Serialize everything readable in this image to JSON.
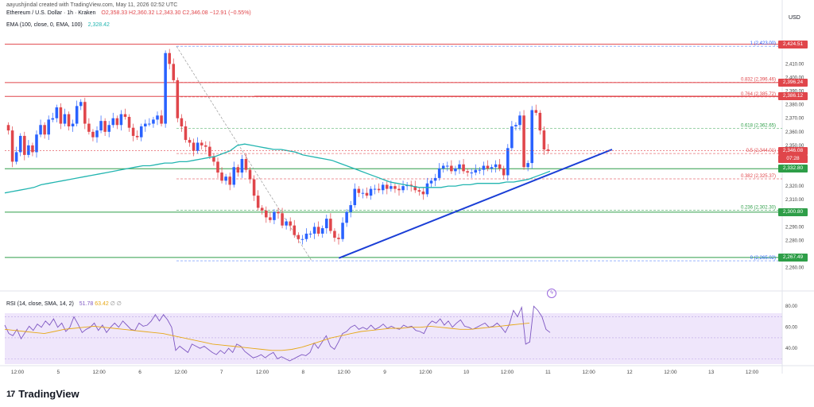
{
  "header": {
    "credit": "aayushjindal created with TradingView.com, May 11, 2026 02:52 UTC",
    "symbol": "Ethereum / U.S. Dollar · 1h · Kraken",
    "ohlc": "O2,358.33  H2,360.32  L2,343.30  C2,346.08  −12.91 (−0.55%)",
    "ema_label": "EMA (100, close, 0, EMA, 100)",
    "ema_value": "2,328.42",
    "rsi_label": "RSI (14, close, SMA, 14, 2)",
    "rsi_value": "51.78",
    "rsi_ma_value": "63.42",
    "rsi_extra": "∅ ∅",
    "currency": "USD",
    "live_icon": "lightning-icon"
  },
  "branding": {
    "name": "TradingView",
    "mark": "17"
  },
  "colors": {
    "up": "#2962ff",
    "down": "#e0464b",
    "ema": "#22b5b0",
    "rsi": "#7e57c2",
    "rsi_ma": "#e6a817",
    "support": "#2e9e48",
    "resistance": "#e0464b",
    "trendline": "#1a3ed6"
  },
  "chart_data": {
    "type": "candlestick",
    "price_axis": {
      "min": 2251,
      "max": 2436,
      "ticks": [
        "2,410.00",
        "2,400.00",
        "2,390.00",
        "2,380.00",
        "2,370.00",
        "2,360.00",
        "2,350.00",
        "2,320.00",
        "2,310.00",
        "2,290.00",
        "2,280.00",
        "2,260.00"
      ]
    },
    "rsi_axis": {
      "min": 25,
      "max": 90,
      "ticks": [
        "80.00",
        "60.00",
        "40.00"
      ]
    },
    "time_axis": {
      "labels": [
        "12:00",
        "5",
        "12:00",
        "6",
        "12:00",
        "7",
        "12:00",
        "8",
        "12:00",
        "9",
        "12:00",
        "10",
        "12:00",
        "11",
        "12:00",
        "12",
        "12:00",
        "13",
        "12:00"
      ]
    },
    "fib_levels": [
      {
        "label": "1 (2,423.00)",
        "value": 2423,
        "color": "#2962ff"
      },
      {
        "label": "0.832 (2,396.46)",
        "value": 2396.46,
        "color": "#e0464b"
      },
      {
        "label": "0.764 (2,385.72)",
        "value": 2385.72,
        "color": "#e0464b"
      },
      {
        "label": "0.618 (2,362.65)",
        "value": 2362.65,
        "color": "#2e9e48"
      },
      {
        "label": "0.5 (2,344.01)",
        "value": 2344.01,
        "color": "#e0464b"
      },
      {
        "label": "0.382 (2,325.37)",
        "value": 2325.37,
        "color": "#e0464b"
      },
      {
        "label": "0.236 (2,302.30)",
        "value": 2302.3,
        "color": "#2e9e48"
      },
      {
        "label": "0 (2,265.02)",
        "value": 2265.02,
        "color": "#2962ff"
      }
    ],
    "horizontal_lines": [
      {
        "value": 2424.5,
        "color": "#e0464b",
        "label": "2,424.51"
      },
      {
        "value": 2396.24,
        "color": "#e0464b",
        "label": "2,396.24"
      },
      {
        "value": 2386.12,
        "color": "#e0464b",
        "label": "2,386.12"
      },
      {
        "value": 2332.8,
        "color": "#2e9e48",
        "label": "2,332.80"
      },
      {
        "value": 2300.8,
        "color": "#2e9e48",
        "label": "2,300.80"
      },
      {
        "value": 2267.49,
        "color": "#2e9e48",
        "label": "2,267.49"
      }
    ],
    "current_price": {
      "value": 2346.08,
      "label": "2,346.08",
      "countdown": "07:28"
    },
    "trendline": {
      "from": [
        0.4163,
        2267
      ],
      "to": [
        0.7519,
        2347
      ]
    },
    "close_series": [
      2361,
      2338,
      2345,
      2357,
      2343,
      2350,
      2345,
      2358,
      2365,
      2358,
      2369,
      2370,
      2378,
      2366,
      2373,
      2364,
      2366,
      2379,
      2382,
      2366,
      2360,
      2356,
      2361,
      2368,
      2360,
      2365,
      2370,
      2365,
      2373,
      2371,
      2363,
      2357,
      2356,
      2364,
      2366,
      2366,
      2369,
      2372,
      2366,
      2418,
      2410,
      2398,
      2370,
      2364,
      2354,
      2352,
      2346,
      2352,
      2350,
      2349,
      2342,
      2338,
      2330,
      2324,
      2327,
      2321,
      2334,
      2330,
      2340,
      2332,
      2325,
      2313,
      2304,
      2302,
      2297,
      2295,
      2301,
      2300,
      2291,
      2294,
      2291,
      2284,
      2281,
      2281,
      2285,
      2285,
      2290,
      2285,
      2289,
      2296,
      2287,
      2282,
      2281,
      2293,
      2301,
      2306,
      2318,
      2315,
      2315,
      2313,
      2318,
      2318,
      2317,
      2321,
      2318,
      2320,
      2318,
      2317,
      2320,
      2321,
      2320,
      2317,
      2316,
      2314,
      2322,
      2324,
      2326,
      2333,
      2335,
      2335,
      2331,
      2333,
      2336,
      2331,
      2330,
      2330,
      2332,
      2332,
      2335,
      2333,
      2334,
      2336,
      2333,
      2328,
      2348,
      2364,
      2365,
      2372,
      2334,
      2337,
      2376,
      2374,
      2361,
      2347,
      2346
    ],
    "ema_series": [
      2315,
      2316,
      2317,
      2318,
      2319,
      2321,
      2322,
      2323,
      2324,
      2325,
      2326,
      2327,
      2328,
      2329,
      2330,
      2331,
      2332,
      2333,
      2334,
      2335,
      2335,
      2336,
      2337,
      2337,
      2338,
      2338,
      2339,
      2340,
      2341,
      2342,
      2344,
      2346,
      2350,
      2351,
      2350,
      2349,
      2348,
      2347,
      2347,
      2346,
      2345,
      2343,
      2342,
      2341,
      2340,
      2339,
      2337,
      2335,
      2333,
      2331,
      2329,
      2327,
      2325,
      2323,
      2322,
      2321,
      2320,
      2319,
      2319,
      2319,
      2319,
      2320,
      2320,
      2321,
      2321,
      2322,
      2322,
      2322,
      2322,
      2323,
      2323,
      2324,
      2325,
      2327,
      2329,
      2331
    ],
    "rsi_series": [
      62,
      54,
      52,
      58,
      49,
      55,
      61,
      57,
      63,
      60,
      66,
      62,
      68,
      60,
      64,
      56,
      60,
      70,
      63,
      55,
      58,
      60,
      64,
      57,
      62,
      55,
      60,
      64,
      60,
      66,
      62,
      58,
      57,
      64,
      61,
      62,
      66,
      72,
      66,
      72,
      67,
      60,
      38,
      42,
      39,
      36,
      44,
      42,
      40,
      42,
      39,
      36,
      34,
      38,
      35,
      40,
      36,
      44,
      42,
      37,
      34,
      31,
      32,
      34,
      31,
      34,
      36,
      30,
      32,
      30,
      28,
      30,
      32,
      34,
      33,
      36,
      45,
      40,
      46,
      52,
      42,
      39,
      46,
      54,
      56,
      60,
      62,
      58,
      60,
      58,
      62,
      58,
      60,
      63,
      59,
      61,
      59,
      58,
      62,
      60,
      61,
      57,
      56,
      54,
      62,
      66,
      64,
      68,
      62,
      66,
      60,
      64,
      67,
      61,
      60,
      58,
      60,
      62,
      64,
      60,
      61,
      64,
      60,
      55,
      63,
      76,
      70,
      79,
      44,
      46,
      80,
      76,
      70,
      58,
      55
    ],
    "rsi_ma_series": [
      58,
      57,
      56,
      55,
      54,
      56,
      58,
      59,
      60,
      61,
      60,
      59,
      58,
      57,
      56,
      55,
      54,
      52,
      50,
      48,
      46,
      44,
      43,
      42,
      41,
      40,
      39,
      38,
      38,
      39,
      41,
      44,
      47,
      50,
      52,
      54,
      56,
      57,
      58,
      59,
      59,
      60,
      60,
      61,
      60,
      59,
      58,
      58,
      59,
      60,
      61,
      62,
      63,
      64
    ]
  }
}
